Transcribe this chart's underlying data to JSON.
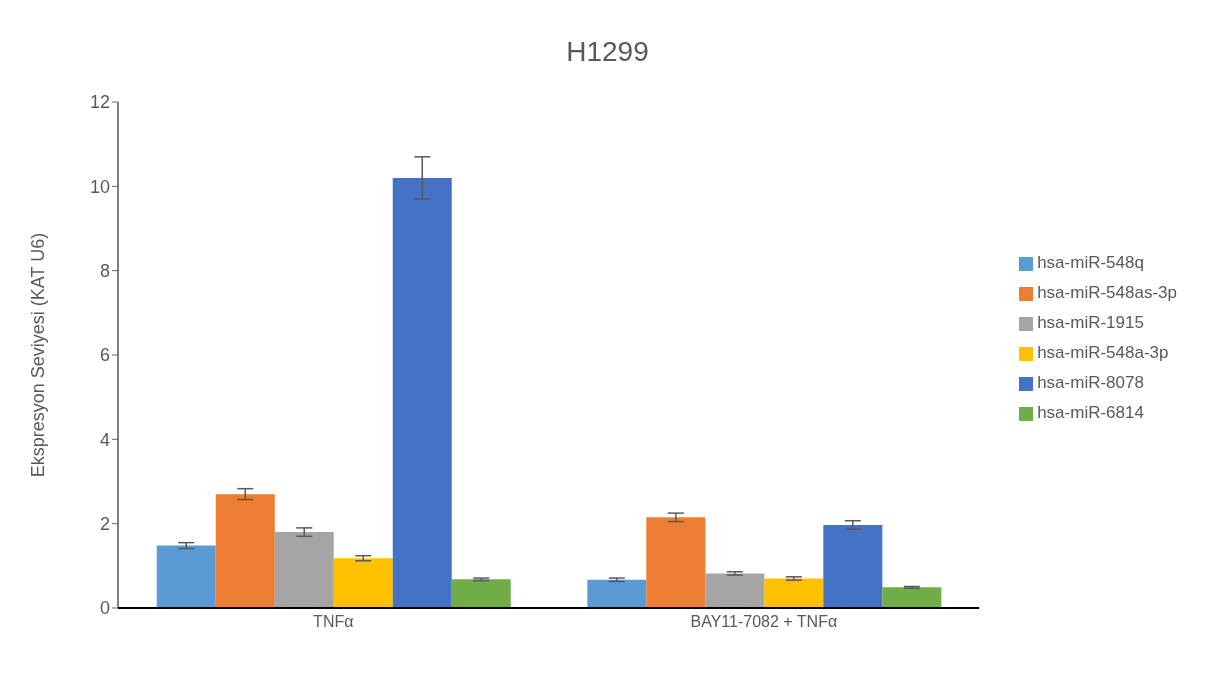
{
  "chart_data": {
    "type": "bar",
    "title": "H1299",
    "ylabel": "Ekspresyon Seviyesi (KAT U6)",
    "categories": [
      "TNFα",
      "BAY11-7082 + TNFα"
    ],
    "series": [
      {
        "name": "hsa-miR-548q",
        "color": "#5b9bd5",
        "values": [
          1.48,
          0.67
        ],
        "errors": [
          0.07,
          0.04
        ]
      },
      {
        "name": "hsa-miR-548as-3p",
        "color": "#ed7d31",
        "values": [
          2.7,
          2.15
        ],
        "errors": [
          0.13,
          0.1
        ]
      },
      {
        "name": "hsa-miR-1915",
        "color": "#a5a5a5",
        "values": [
          1.8,
          0.82
        ],
        "errors": [
          0.1,
          0.04
        ]
      },
      {
        "name": "hsa-miR-548a-3p",
        "color": "#ffc000",
        "values": [
          1.18,
          0.7
        ],
        "errors": [
          0.06,
          0.04
        ]
      },
      {
        "name": "hsa-miR-8078",
        "color": "#4472c4",
        "values": [
          10.2,
          1.97
        ],
        "errors": [
          0.5,
          0.1
        ]
      },
      {
        "name": "hsa-miR-6814",
        "color": "#70ad47",
        "values": [
          0.68,
          0.49
        ],
        "errors": [
          0.03,
          0.02
        ]
      }
    ],
    "ylim": [
      0,
      12
    ],
    "yticks": [
      0,
      2,
      4,
      6,
      8,
      10,
      12
    ],
    "grid": false,
    "legend": "right"
  }
}
